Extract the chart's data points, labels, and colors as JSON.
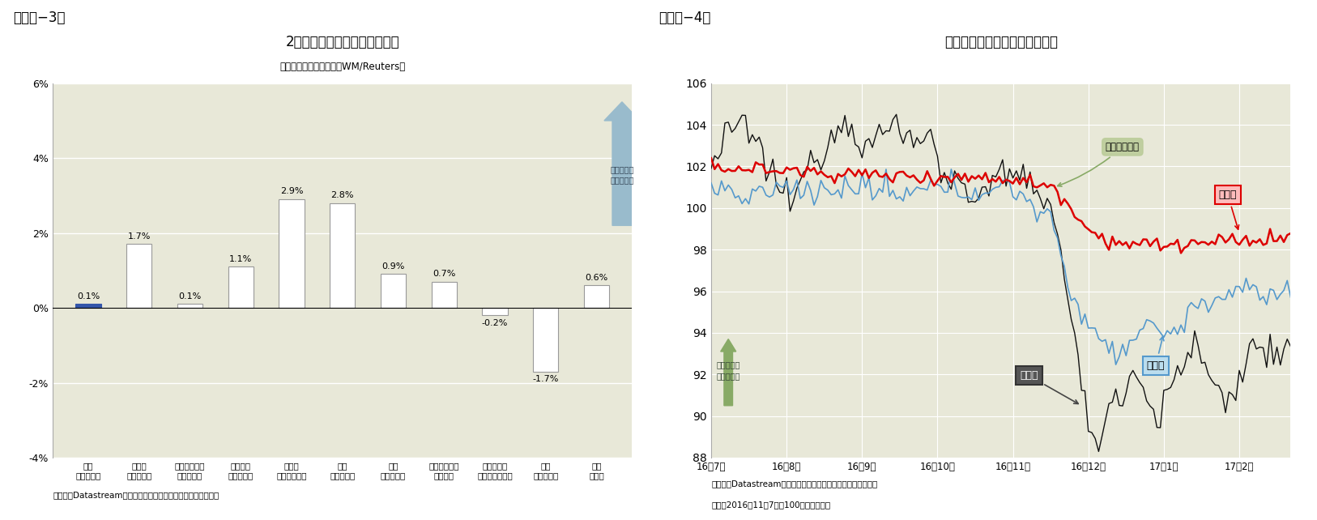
{
  "fig3_title": "2月の主要新興国通貨の変化率",
  "fig3_subtitle": "（対米ドル、前月末比、WM/Reuters）",
  "fig3_source": "（資料）Datastreamのデータを元にニッセイ基礎研究所で作成",
  "fig3_categories": [
    "中国\n（人民元）",
    "インド\n（ルピー）",
    "インドネシア\n（ルピア）",
    "ブラジル\n（レアル）",
    "ロシア\n（ルーブル）",
    "韓国\n（ウォン）",
    "タイ\n（バーツ）",
    "シンガポール\n（ドル）",
    "マレーシア\n（リンギット）",
    "欧州\n（ユーロ）",
    "日本\n（円）"
  ],
  "fig3_values": [
    0.1,
    1.7,
    0.1,
    1.1,
    2.9,
    2.8,
    0.9,
    0.7,
    -0.2,
    -1.7,
    0.6
  ],
  "fig3_bar_color_positive": "#ffffff",
  "fig3_bar_color_china": "#3355aa",
  "fig3_bar_edge_color": "#999999",
  "fig3_ylim": [
    -4,
    6
  ],
  "fig3_yticks": [
    -4,
    -2,
    0,
    2,
    4,
    6
  ],
  "fig3_bg_color": "#e8e8d8",
  "fig3_arrow_color": "#99bbcc",
  "fig4_title": "主要通貨（対米国ドル）の推移",
  "fig4_source1": "（資料）Datastreamのデータを元にニッセイ基礎研究所で作成",
  "fig4_source2": "（注）2016年11月7日＝100として指数化",
  "fig4_ylim": [
    88,
    106
  ],
  "fig4_yticks": [
    88,
    90,
    92,
    94,
    96,
    98,
    100,
    102,
    104,
    106
  ],
  "fig4_bg_color": "#e8e8d8",
  "fig4_xtick_labels": [
    "16年7月",
    "16年8月",
    "16年9月",
    "16年10月",
    "16年11月",
    "16年12月",
    "17年1月",
    "17年2月"
  ],
  "fig4_jpy_color": "#111111",
  "fig4_cny_color": "#dd0000",
  "fig4_eur_color": "#5599cc",
  "fig4_annotation_trump": "トランプ当選",
  "fig4_annotation_trump_color": "#bbcc99",
  "fig4_annotation_jpy": "日本円",
  "fig4_annotation_cny": "人民元",
  "fig4_annotation_eur": "ユーロ",
  "fig4_arrow_color": "#88aa66",
  "header3": "（図表−3）",
  "header4": "（図表−4）"
}
